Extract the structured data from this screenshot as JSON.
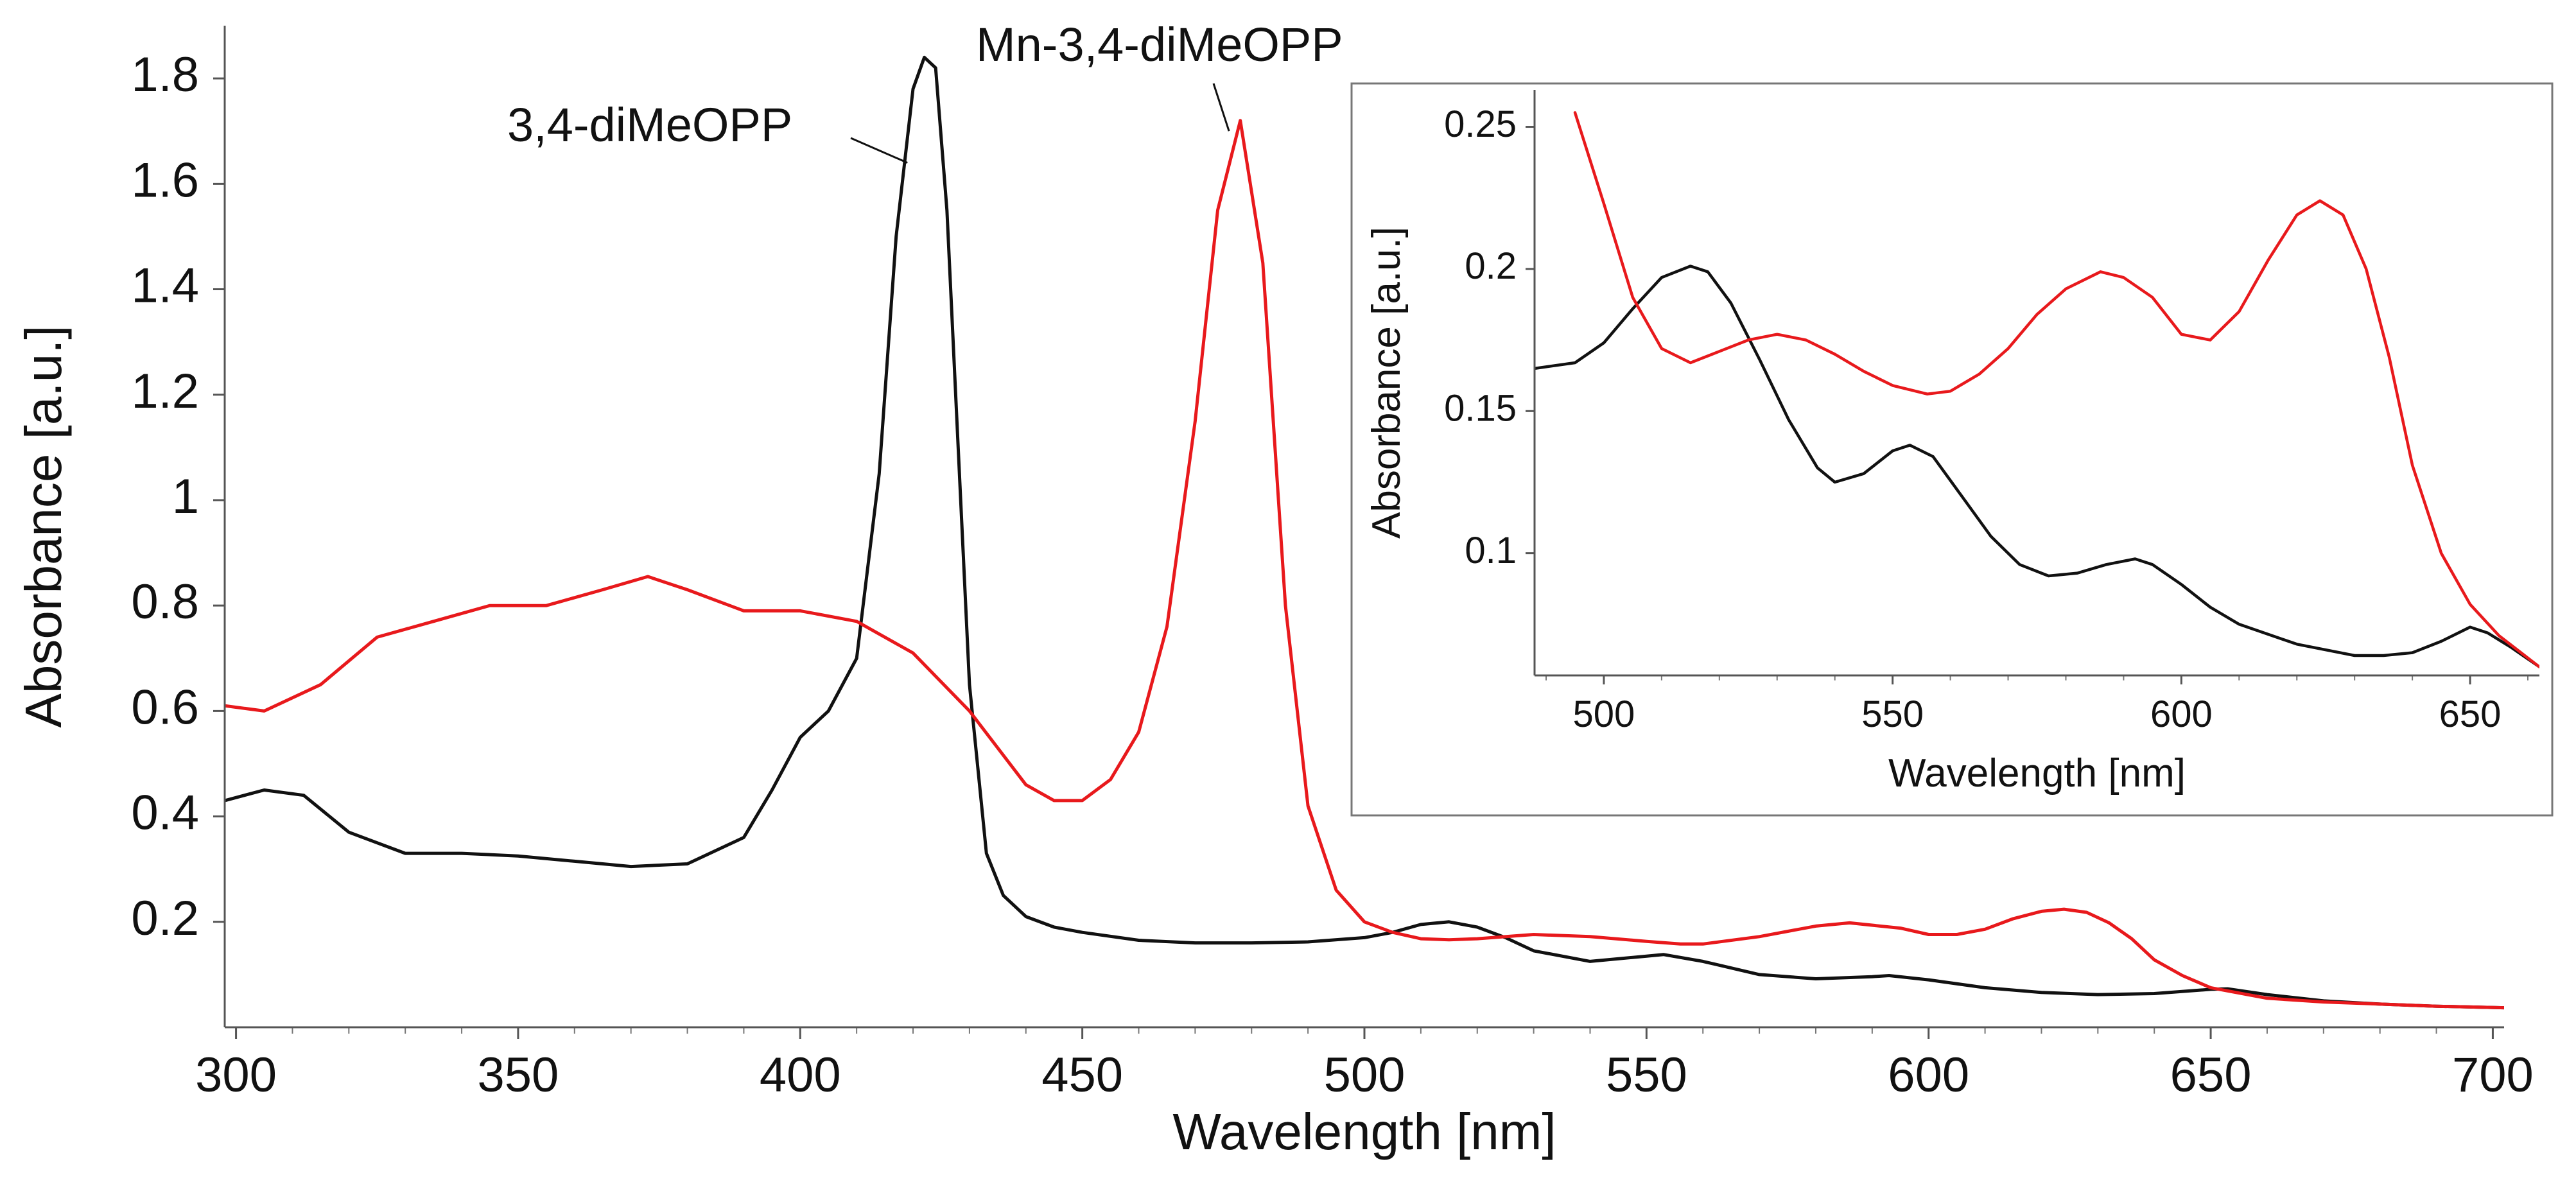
{
  "chart_data": [
    {
      "id": "main",
      "type": "line",
      "xlabel": "Wavelength [nm]",
      "ylabel": "Absorbance  [a.u.]",
      "xlim": [
        298,
        702
      ],
      "ylim": [
        0,
        1.9
      ],
      "x_ticks": [
        300,
        350,
        400,
        450,
        500,
        550,
        600,
        650,
        700
      ],
      "y_ticks": [
        0.2,
        0.4,
        0.6,
        0.8,
        1,
        1.2,
        1.4,
        1.6,
        1.8
      ],
      "x_tick_labels": [
        "300",
        "350",
        "400",
        "450",
        "500",
        "550",
        "600",
        "650",
        "700"
      ],
      "y_tick_labels": [
        "0.2",
        "0.4",
        "0.6",
        "0.8",
        "1",
        "1.2",
        "1.4",
        "1.6",
        "1.8"
      ],
      "grid": false,
      "series": [
        {
          "name": "3,4-diMeOPP",
          "color": "#111111",
          "x": [
            298,
            305,
            312,
            320,
            330,
            340,
            350,
            360,
            370,
            380,
            390,
            395,
            400,
            405,
            410,
            414,
            417,
            420,
            422,
            424,
            426,
            428,
            430,
            433,
            436,
            440,
            445,
            450,
            460,
            470,
            480,
            490,
            500,
            505,
            510,
            515,
            520,
            525,
            530,
            540,
            550,
            553,
            560,
            570,
            580,
            590,
            593,
            600,
            610,
            620,
            630,
            640,
            650,
            653,
            660,
            670,
            680,
            690,
            702
          ],
          "y": [
            0.43,
            0.45,
            0.44,
            0.37,
            0.33,
            0.33,
            0.325,
            0.315,
            0.305,
            0.31,
            0.36,
            0.45,
            0.55,
            0.6,
            0.7,
            1.05,
            1.5,
            1.78,
            1.84,
            1.82,
            1.55,
            1.1,
            0.65,
            0.33,
            0.25,
            0.21,
            0.19,
            0.18,
            0.165,
            0.16,
            0.16,
            0.162,
            0.17,
            0.18,
            0.195,
            0.2,
            0.19,
            0.17,
            0.145,
            0.125,
            0.135,
            0.138,
            0.125,
            0.1,
            0.092,
            0.096,
            0.098,
            0.09,
            0.075,
            0.066,
            0.062,
            0.064,
            0.072,
            0.073,
            0.062,
            0.05,
            0.044,
            0.04,
            0.037
          ]
        },
        {
          "name": "Mn-3,4-diMeOPP",
          "color": "#e8191c",
          "x": [
            298,
            305,
            315,
            325,
            335,
            345,
            355,
            365,
            373,
            380,
            390,
            400,
            410,
            420,
            430,
            440,
            445,
            450,
            455,
            460,
            465,
            470,
            474,
            478,
            482,
            486,
            490,
            495,
            500,
            505,
            510,
            515,
            520,
            530,
            540,
            550,
            556,
            560,
            570,
            580,
            586,
            595,
            600,
            605,
            610,
            615,
            620,
            624,
            628,
            632,
            636,
            640,
            645,
            650,
            660,
            670,
            680,
            690,
            702
          ],
          "y": [
            0.61,
            0.6,
            0.65,
            0.74,
            0.77,
            0.8,
            0.8,
            0.83,
            0.855,
            0.83,
            0.79,
            0.79,
            0.77,
            0.71,
            0.6,
            0.46,
            0.43,
            0.43,
            0.47,
            0.56,
            0.76,
            1.15,
            1.55,
            1.72,
            1.45,
            0.8,
            0.42,
            0.26,
            0.2,
            0.18,
            0.168,
            0.166,
            0.168,
            0.176,
            0.172,
            0.163,
            0.158,
            0.158,
            0.172,
            0.192,
            0.198,
            0.188,
            0.176,
            0.176,
            0.186,
            0.206,
            0.22,
            0.224,
            0.218,
            0.198,
            0.168,
            0.128,
            0.098,
            0.075,
            0.055,
            0.048,
            0.044,
            0.04,
            0.037
          ]
        }
      ],
      "annotations": [
        {
          "text": "3,4-diMeOPP",
          "target_x": 419,
          "target_y": 1.64
        },
        {
          "text": "Mn-3,4-diMeOPP",
          "target_x": 476,
          "target_y": 1.7
        }
      ]
    },
    {
      "id": "inset",
      "type": "line",
      "xlabel": "Wavelength [nm]",
      "ylabel": "Absorbance [a.u.]",
      "xlim": [
        488,
        662
      ],
      "ylim": [
        0.057,
        0.263
      ],
      "x_ticks": [
        500,
        550,
        600,
        650
      ],
      "y_ticks": [
        0.1,
        0.15,
        0.2,
        0.25
      ],
      "x_tick_labels": [
        "500",
        "550",
        "600",
        "650"
      ],
      "y_tick_labels": [
        "0.1",
        "0.15",
        "0.2",
        "0.25"
      ],
      "grid": false,
      "series": [
        {
          "name": "3,4-diMeOPP",
          "color": "#111111",
          "x": [
            488,
            495,
            500,
            505,
            510,
            515,
            518,
            522,
            527,
            532,
            537,
            540,
            545,
            550,
            553,
            557,
            562,
            567,
            572,
            577,
            582,
            587,
            592,
            595,
            600,
            605,
            610,
            620,
            630,
            635,
            640,
            645,
            650,
            653,
            657,
            662
          ],
          "y": [
            0.165,
            0.167,
            0.174,
            0.186,
            0.197,
            0.201,
            0.199,
            0.188,
            0.168,
            0.147,
            0.13,
            0.125,
            0.128,
            0.136,
            0.138,
            0.134,
            0.12,
            0.106,
            0.096,
            0.092,
            0.093,
            0.096,
            0.098,
            0.096,
            0.089,
            0.081,
            0.075,
            0.068,
            0.064,
            0.064,
            0.065,
            0.069,
            0.074,
            0.072,
            0.067,
            0.06
          ]
        },
        {
          "name": "Mn-3,4-diMeOPP",
          "color": "#e8191c",
          "x": [
            495,
            500,
            505,
            510,
            515,
            520,
            525,
            530,
            535,
            540,
            545,
            550,
            556,
            560,
            565,
            570,
            575,
            580,
            586,
            590,
            595,
            600,
            605,
            610,
            615,
            620,
            624,
            628,
            632,
            636,
            640,
            645,
            650,
            655,
            662
          ],
          "y": [
            0.255,
            0.223,
            0.19,
            0.172,
            0.167,
            0.171,
            0.175,
            0.177,
            0.175,
            0.17,
            0.164,
            0.159,
            0.156,
            0.157,
            0.163,
            0.172,
            0.184,
            0.193,
            0.199,
            0.197,
            0.19,
            0.177,
            0.175,
            0.185,
            0.203,
            0.219,
            0.224,
            0.219,
            0.2,
            0.169,
            0.131,
            0.1,
            0.082,
            0.071,
            0.06
          ]
        }
      ]
    }
  ]
}
